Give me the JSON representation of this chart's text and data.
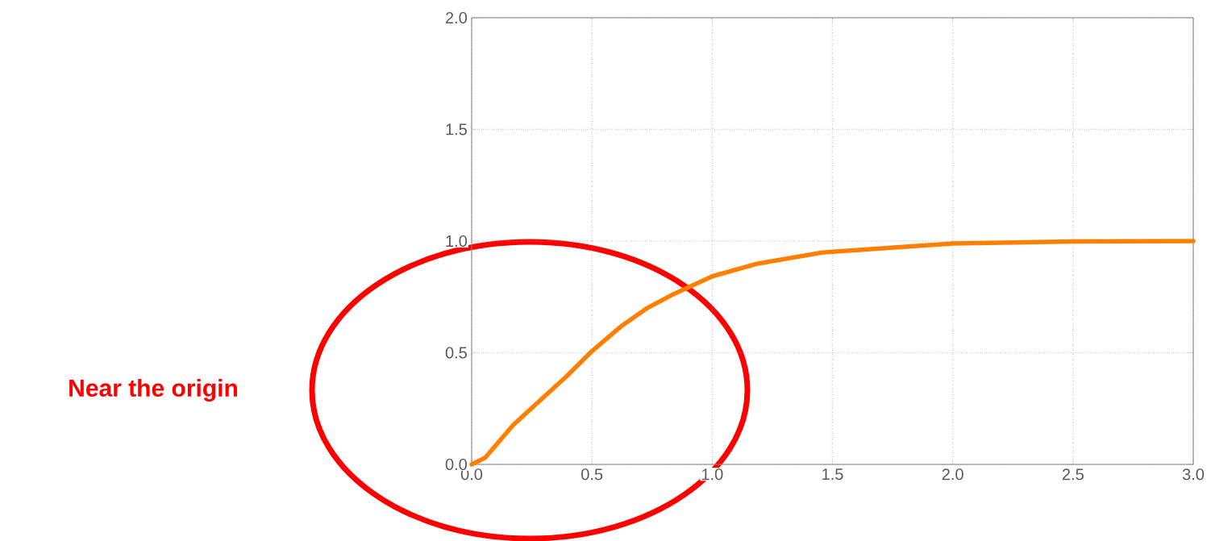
{
  "chart_data": {
    "type": "line",
    "x": [
      0,
      0.056,
      0.173,
      0.285,
      0.397,
      0.5,
      0.62,
      0.73,
      0.84,
      1.0,
      1.18,
      1.46,
      1.5,
      2.0,
      2.5,
      3.0
    ],
    "series": [
      {
        "color": "#ff8000",
        "values": [
          0,
          0.03,
          0.177,
          0.287,
          0.397,
          0.507,
          0.617,
          0.7,
          0.763,
          0.842,
          0.897,
          0.949,
          0.952,
          0.989,
          0.998,
          1.0
        ]
      }
    ],
    "xlim": [
      0,
      3
    ],
    "ylim": [
      0,
      2
    ],
    "xticks": [
      {
        "value": 0,
        "label": "0.0"
      },
      0.5,
      {
        "value": 1,
        "label": "1.0"
      },
      1.5,
      {
        "value": 2,
        "label": "2.0"
      },
      2.5,
      {
        "value": 3,
        "label": "3.0"
      }
    ],
    "yticks": [
      {
        "value": 0,
        "label": "0.0"
      },
      0.5,
      {
        "value": 1,
        "label": "1.0"
      },
      1.5,
      {
        "value": 2,
        "label": "2.0"
      }
    ],
    "grid": true,
    "line_style": "solid",
    "marker": "none",
    "annotations": [
      "Near the origin"
    ]
  }
}
